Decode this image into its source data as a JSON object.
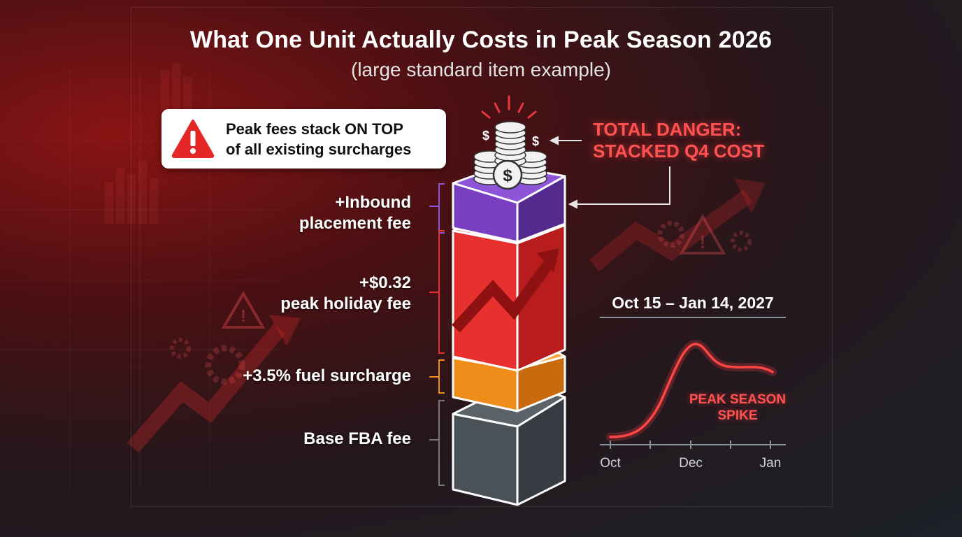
{
  "title": "What One Unit Actually Costs in Peak Season 2026",
  "subtitle": "(large standard item example)",
  "callout": {
    "line1": "Peak fees stack ON TOP",
    "line2": "of all existing surcharges",
    "icon": "warning-triangle-icon"
  },
  "stack_layers": [
    {
      "id": "inbound",
      "line1": "+Inbound",
      "line2": "placement fee",
      "color": "#7a3fc0"
    },
    {
      "id": "peak",
      "line1": "+$0.32",
      "line2": "peak holiday fee",
      "color": "#e8302e"
    },
    {
      "id": "fuel",
      "line1": "+3.5% fuel surcharge",
      "line2": "",
      "color": "#f08c1a"
    },
    {
      "id": "base",
      "line1": "Base FBA fee",
      "line2": "",
      "color": "#4b5257"
    }
  ],
  "danger": {
    "line1": "TOTAL DANGER:",
    "line2": "STACKED Q4 COST"
  },
  "timeline": {
    "date_range": "Oct 15 – Jan 14, 2027",
    "ticks": [
      "Oct",
      "Dec",
      "Jan"
    ],
    "annotation_line1": "PEAK SEASON",
    "annotation_line2": "SPIKE",
    "accent_color": "#ff3b3b"
  },
  "coins_icon": "coin-stack-icon"
}
